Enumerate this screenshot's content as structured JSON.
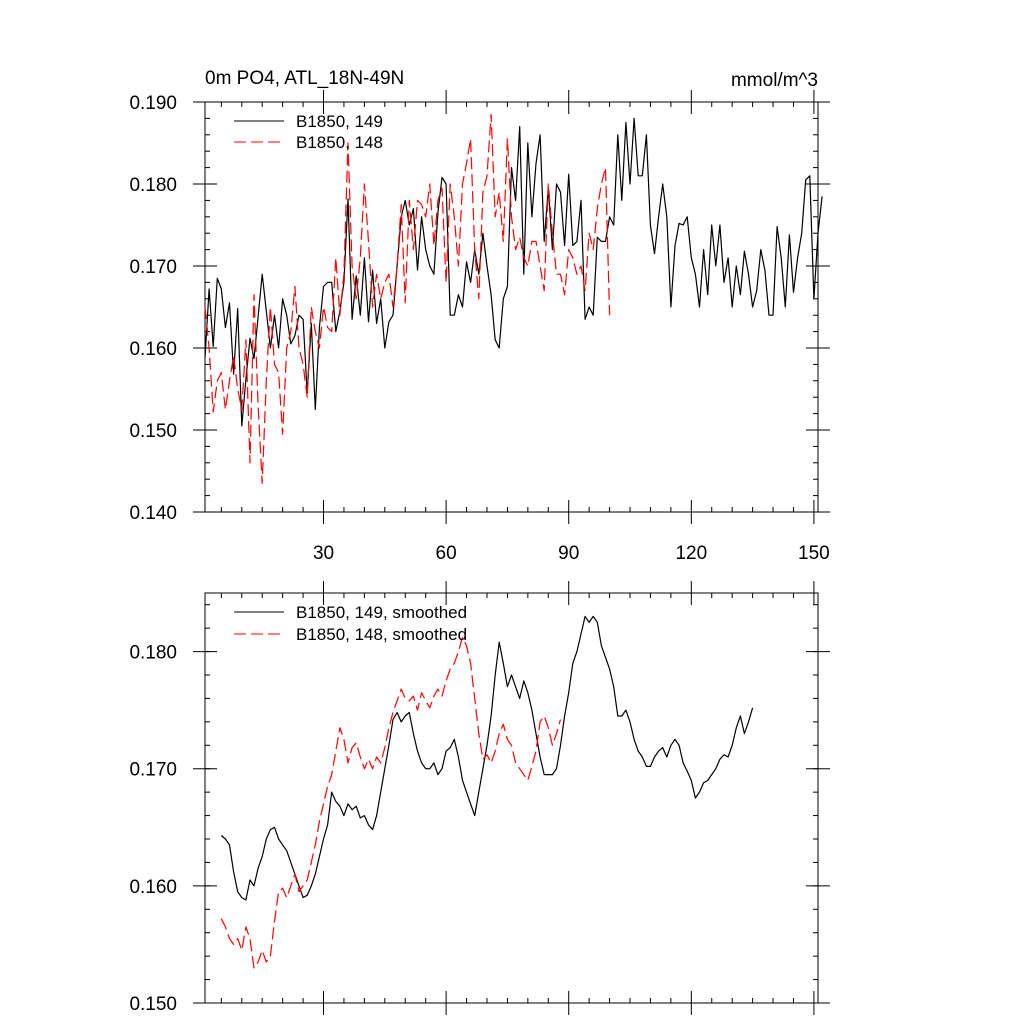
{
  "chart_data": [
    {
      "type": "line",
      "title": "0m PO4, ATL_18N-49N",
      "units": "mmol/m^3",
      "xlabel": "",
      "ylabel": "",
      "xlim": [
        1,
        151
      ],
      "ylim": [
        0.14,
        0.19
      ],
      "xticks": [
        30,
        60,
        90,
        120,
        150
      ],
      "xtick_labels": [
        "30",
        "60",
        "90",
        "120",
        "150"
      ],
      "yticks": [
        0.14,
        0.15,
        0.16,
        0.17,
        0.18,
        0.19
      ],
      "ytick_labels": [
        "0.140",
        "0.150",
        "0.160",
        "0.170",
        "0.180",
        "0.190"
      ],
      "grid": false,
      "legend_position": "top-left",
      "series": [
        {
          "name": "B1850, 149",
          "color": "#000000",
          "dash": "solid",
          "x_start": 1,
          "values": [
            0.1588,
            0.1672,
            0.1602,
            0.1685,
            0.1672,
            0.1625,
            0.1655,
            0.1568,
            0.1648,
            0.1505,
            0.1562,
            0.1612,
            0.1587,
            0.1638,
            0.169,
            0.1645,
            0.16,
            0.164,
            0.16,
            0.166,
            0.164,
            0.1605,
            0.1615,
            0.164,
            0.1635,
            0.1545,
            0.163,
            0.1525,
            0.1625,
            0.1675,
            0.168,
            0.168,
            0.162,
            0.1645,
            0.168,
            0.1782,
            0.1635,
            0.1688,
            0.164,
            0.171,
            0.1632,
            0.1695,
            0.163,
            0.166,
            0.16,
            0.1632,
            0.164,
            0.17,
            0.176,
            0.178,
            0.175,
            0.177,
            0.1695,
            0.176,
            0.172,
            0.17,
            0.169,
            0.1765,
            0.1808,
            0.18,
            0.164,
            0.164,
            0.1665,
            0.165,
            0.1705,
            0.168,
            0.172,
            0.169,
            0.174,
            0.17,
            0.1665,
            0.161,
            0.16,
            0.166,
            0.1675,
            0.182,
            0.178,
            0.187,
            0.169,
            0.185,
            0.176,
            0.1825,
            0.186,
            0.173,
            0.1795,
            0.172,
            0.18,
            0.179,
            0.1725,
            0.1812,
            0.1725,
            0.173,
            0.178,
            0.1635,
            0.165,
            0.164,
            0.1735,
            0.173,
            0.173,
            0.176,
            0.175,
            0.186,
            0.178,
            0.1875,
            0.18,
            0.188,
            0.181,
            0.181,
            0.186,
            0.175,
            0.1715,
            0.176,
            0.18,
            0.176,
            0.165,
            0.1725,
            0.1752,
            0.175,
            0.176,
            0.171,
            0.169,
            0.165,
            0.172,
            0.1665,
            0.175,
            0.17,
            0.175,
            0.168,
            0.171,
            0.165,
            0.17,
            0.1665,
            0.1718,
            0.169,
            0.165,
            0.167,
            0.172,
            0.1695,
            0.164,
            0.164,
            0.1748,
            0.171,
            0.165,
            0.1738,
            0.1668,
            0.171,
            0.174,
            0.1805,
            0.181,
            0.166,
            0.174,
            0.1785
          ]
        },
        {
          "name": "B1850, 148",
          "color": "#ff0000",
          "dash": "dashed",
          "x_start": 1,
          "values": [
            0.165,
            0.16,
            0.1522,
            0.156,
            0.157,
            0.1525,
            0.156,
            0.159,
            0.155,
            0.1525,
            0.161,
            0.146,
            0.1665,
            0.153,
            0.1435,
            0.156,
            0.165,
            0.158,
            0.157,
            0.1495,
            0.16,
            0.162,
            0.1675,
            0.16,
            0.158,
            0.154,
            0.165,
            0.162,
            0.16,
            0.165,
            0.1625,
            0.162,
            0.171,
            0.164,
            0.169,
            0.185,
            0.17,
            0.166,
            0.171,
            0.18,
            0.173,
            0.165,
            0.169,
            0.166,
            0.168,
            0.169,
            0.165,
            0.17,
            0.1775,
            0.1655,
            0.178,
            0.172,
            0.178,
            0.1775,
            0.176,
            0.18,
            0.1725,
            0.178,
            0.1795,
            0.168,
            0.18,
            0.176,
            0.17,
            0.18,
            0.1825,
            0.1855,
            0.172,
            0.166,
            0.179,
            0.181,
            0.1885,
            0.176,
            0.179,
            0.173,
            0.1855,
            0.176,
            0.172,
            0.1735,
            0.171,
            0.17,
            0.173,
            0.173,
            0.17,
            0.167,
            0.18,
            0.174,
            0.169,
            0.169,
            0.1665,
            0.172,
            0.171,
            0.169,
            0.17,
            0.167,
            0.174,
            0.172,
            0.177,
            0.18,
            0.182,
            0.164
          ]
        }
      ]
    },
    {
      "type": "line",
      "title": "",
      "xlabel": "",
      "ylabel": "",
      "xlim": [
        1,
        151
      ],
      "ylim": [
        0.15,
        0.185
      ],
      "xticks": [
        30,
        60,
        90,
        120,
        150
      ],
      "yticks": [
        0.15,
        0.16,
        0.17,
        0.18
      ],
      "ytick_labels": [
        "0.150",
        "0.160",
        "0.170",
        "0.180"
      ],
      "grid": false,
      "legend_position": "top-left",
      "series": [
        {
          "name": "B1850, 149, smoothed",
          "color": "#000000",
          "dash": "solid",
          "x_start": 5,
          "values": [
            0.1643,
            0.164,
            0.1635,
            0.1612,
            0.1595,
            0.159,
            0.1588,
            0.1605,
            0.16,
            0.1615,
            0.1625,
            0.164,
            0.1648,
            0.165,
            0.164,
            0.1635,
            0.163,
            0.162,
            0.161,
            0.16,
            0.159,
            0.1592,
            0.16,
            0.161,
            0.1625,
            0.164,
            0.1652,
            0.168,
            0.1672,
            0.1668,
            0.166,
            0.167,
            0.1665,
            0.1668,
            0.1658,
            0.166,
            0.1652,
            0.1648,
            0.166,
            0.168,
            0.17,
            0.172,
            0.1742,
            0.1748,
            0.174,
            0.1745,
            0.1748,
            0.173,
            0.1715,
            0.1705,
            0.17,
            0.17,
            0.1705,
            0.1695,
            0.17,
            0.1715,
            0.1718,
            0.1725,
            0.171,
            0.169,
            0.168,
            0.167,
            0.166,
            0.168,
            0.17,
            0.172,
            0.1745,
            0.178,
            0.1808,
            0.179,
            0.177,
            0.178,
            0.177,
            0.176,
            0.1775,
            0.1765,
            0.175,
            0.173,
            0.171,
            0.1695,
            0.1695,
            0.1695,
            0.17,
            0.172,
            0.1745,
            0.1765,
            0.179,
            0.18,
            0.1815,
            0.183,
            0.1825,
            0.183,
            0.1825,
            0.1805,
            0.1795,
            0.1785,
            0.177,
            0.1745,
            0.1745,
            0.175,
            0.174,
            0.1725,
            0.1715,
            0.171,
            0.1702,
            0.1702,
            0.171,
            0.1715,
            0.1718,
            0.171,
            0.172,
            0.1725,
            0.172,
            0.1705,
            0.1698,
            0.169,
            0.1675,
            0.168,
            0.1688,
            0.169,
            0.1695,
            0.17,
            0.1708,
            0.1712,
            0.171,
            0.172,
            0.1735,
            0.1745,
            0.173,
            0.174,
            0.1752
          ]
        },
        {
          "name": "B1850, 148, smoothed",
          "color": "#ff0000",
          "dash": "dashed",
          "x_start": 5,
          "values": [
            0.1572,
            0.1565,
            0.1555,
            0.155,
            0.1555,
            0.1545,
            0.1565,
            0.1555,
            0.153,
            0.1535,
            0.1545,
            0.1535,
            0.154,
            0.157,
            0.1595,
            0.1598,
            0.159,
            0.16,
            0.161,
            0.1595,
            0.16,
            0.1605,
            0.162,
            0.1635,
            0.1655,
            0.167,
            0.1685,
            0.1695,
            0.1715,
            0.1735,
            0.1725,
            0.1705,
            0.1718,
            0.1722,
            0.171,
            0.17,
            0.1708,
            0.17,
            0.171,
            0.1705,
            0.1718,
            0.1735,
            0.1748,
            0.1758,
            0.1768,
            0.176,
            0.1758,
            0.1762,
            0.175,
            0.1765,
            0.1758,
            0.1752,
            0.1762,
            0.1768,
            0.1762,
            0.1775,
            0.1785,
            0.179,
            0.18,
            0.1812,
            0.1805,
            0.179,
            0.176,
            0.173,
            0.1708,
            0.1712,
            0.1705,
            0.1715,
            0.173,
            0.1738,
            0.1725,
            0.172,
            0.1705,
            0.17,
            0.1695,
            0.169,
            0.1702,
            0.1715,
            0.174,
            0.1745,
            0.1735,
            0.172,
            0.173,
            0.1742
          ]
        }
      ]
    }
  ]
}
